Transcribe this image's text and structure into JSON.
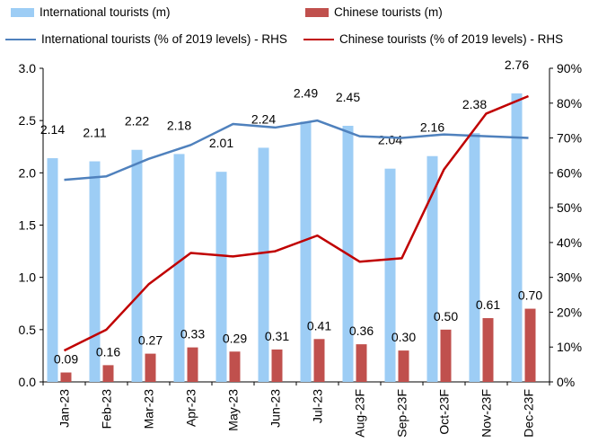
{
  "legend": {
    "intl_bar": "International tourists (m)",
    "cn_bar": "Chinese tourists (m)",
    "intl_line": "International tourists (% of 2019 levels) - RHS",
    "cn_line": "Chinese tourists (% of 2019 levels) - RHS"
  },
  "chart_data": {
    "type": "bar",
    "categories": [
      "Jan-23",
      "Feb-23",
      "Mar-23",
      "Apr-23",
      "May-23",
      "Jun-23",
      "Jul-23",
      "Aug-23F",
      "Sep-23F",
      "Oct-23F",
      "Nov-23F",
      "Dec-23F"
    ],
    "series": [
      {
        "name": "International tourists (m)",
        "type": "bar",
        "axis": "left",
        "color": "#9dcdf5",
        "values": [
          2.14,
          2.11,
          2.22,
          2.18,
          2.01,
          2.24,
          2.49,
          2.45,
          2.04,
          2.16,
          2.38,
          2.76
        ]
      },
      {
        "name": "Chinese tourists (m)",
        "type": "bar",
        "axis": "left",
        "color": "#c0504d",
        "values": [
          0.09,
          0.16,
          0.27,
          0.33,
          0.29,
          0.31,
          0.41,
          0.36,
          0.3,
          0.5,
          0.61,
          0.7
        ]
      },
      {
        "name": "International tourists (% of 2019 levels) - RHS",
        "type": "line",
        "axis": "right",
        "color": "#4f81bd",
        "values": [
          58,
          59,
          64,
          68,
          74,
          73,
          75,
          70.5,
          70,
          71,
          70.5,
          70
        ]
      },
      {
        "name": "Chinese tourists (% of 2019 levels) - RHS",
        "type": "line",
        "axis": "right",
        "color": "#c00000",
        "values": [
          9,
          15,
          28,
          37,
          36,
          37.5,
          42,
          34.5,
          35.5,
          61,
          77,
          82
        ]
      }
    ],
    "y_left": {
      "ylim": [
        0,
        3.0
      ],
      "ticks": [
        "0.0",
        "0.5",
        "1.0",
        "1.5",
        "2.0",
        "2.5",
        "3.0"
      ]
    },
    "y_right": {
      "ylim": [
        0,
        90
      ],
      "ticks": [
        "0%",
        "10%",
        "20%",
        "30%",
        "40%",
        "50%",
        "60%",
        "70%",
        "80%",
        "90%"
      ]
    },
    "grid": false,
    "legend_position": "top"
  }
}
